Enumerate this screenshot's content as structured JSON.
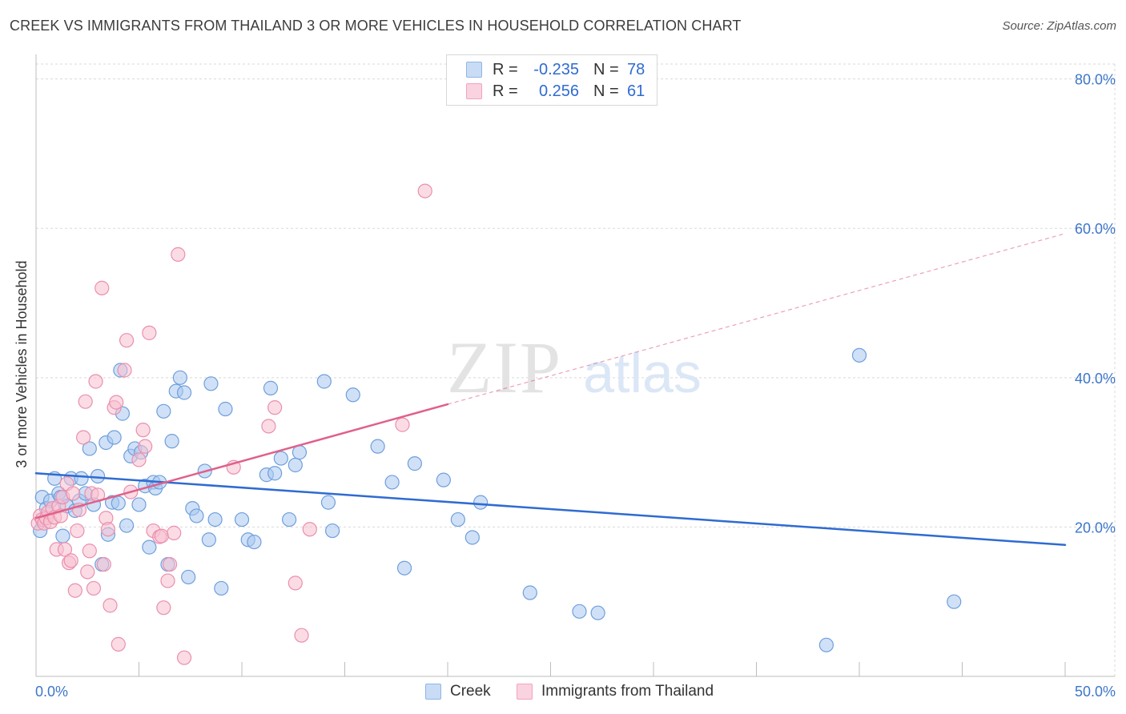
{
  "header": {
    "title": "CREEK VS IMMIGRANTS FROM THAILAND 3 OR MORE VEHICLES IN HOUSEHOLD CORRELATION CHART",
    "source": "Source: ZipAtlas.com"
  },
  "watermark": {
    "zip": "ZIP",
    "atlas": "atlas"
  },
  "legend": {
    "rows": [
      {
        "r_label": "R =",
        "r_value": "-0.235",
        "n_label": "N =",
        "n_value": "78",
        "color": "#8fb5e8"
      },
      {
        "r_label": "R =",
        "r_value": "0.256",
        "n_label": "N =",
        "n_value": "61",
        "color": "#f3a3bd"
      }
    ]
  },
  "colors": {
    "creek_fill": "#a9c8f0",
    "creek_stroke": "#6f9fdc",
    "creek_line": "#2f6bd1",
    "thai_fill": "#f7bfd0",
    "thai_stroke": "#ea8fad",
    "thai_line": "#e0608a",
    "axis_label": "#3d76c9",
    "grid": "#d9d9d9"
  },
  "chart_data": {
    "type": "scatter",
    "title": "CREEK VS IMMIGRANTS FROM THAILAND 3 OR MORE VEHICLES IN HOUSEHOLD CORRELATION CHART",
    "xlabel": "",
    "ylabel": "3 or more Vehicles in Household",
    "xlim": [
      0,
      50
    ],
    "ylim": [
      0,
      82
    ],
    "x_tick_labels": [
      "0.0%",
      "50.0%"
    ],
    "y_ticks": [
      20,
      40,
      60,
      80
    ],
    "y_tick_labels": [
      "20.0%",
      "40.0%",
      "60.0%",
      "80.0%"
    ],
    "grid": true,
    "legend_position": "bottom",
    "series": [
      {
        "name": "Creek",
        "r": -0.235,
        "n": 78,
        "trend": {
          "x_start": 0,
          "y_start": 27.2,
          "x_end": 50,
          "y_end": 17.6,
          "solid_until": 50
        },
        "points": [
          [
            0.2,
            19.5
          ],
          [
            0.3,
            24.0
          ],
          [
            0.5,
            22.5
          ],
          [
            0.7,
            23.5
          ],
          [
            0.9,
            26.5
          ],
          [
            1.1,
            24.5
          ],
          [
            1.2,
            24.0
          ],
          [
            1.3,
            18.8
          ],
          [
            1.5,
            22.8
          ],
          [
            1.7,
            26.5
          ],
          [
            1.9,
            22.2
          ],
          [
            2.1,
            23.5
          ],
          [
            2.2,
            26.5
          ],
          [
            2.4,
            24.5
          ],
          [
            2.6,
            30.5
          ],
          [
            2.8,
            23.0
          ],
          [
            3.0,
            26.8
          ],
          [
            3.2,
            15.0
          ],
          [
            3.4,
            31.3
          ],
          [
            3.5,
            19.0
          ],
          [
            3.7,
            23.3
          ],
          [
            3.8,
            32.0
          ],
          [
            4.0,
            23.2
          ],
          [
            4.1,
            41.0
          ],
          [
            4.2,
            35.2
          ],
          [
            4.4,
            20.2
          ],
          [
            4.6,
            29.5
          ],
          [
            4.8,
            30.5
          ],
          [
            5.0,
            23.0
          ],
          [
            5.1,
            30.0
          ],
          [
            5.3,
            25.5
          ],
          [
            5.5,
            17.3
          ],
          [
            5.7,
            26.0
          ],
          [
            5.8,
            25.2
          ],
          [
            6.0,
            26.0
          ],
          [
            6.2,
            35.5
          ],
          [
            6.4,
            15.0
          ],
          [
            6.6,
            31.5
          ],
          [
            6.8,
            38.2
          ],
          [
            7.0,
            40.0
          ],
          [
            7.2,
            38.0
          ],
          [
            7.4,
            13.3
          ],
          [
            7.6,
            22.5
          ],
          [
            7.8,
            21.5
          ],
          [
            8.2,
            27.5
          ],
          [
            8.4,
            18.3
          ],
          [
            8.5,
            39.2
          ],
          [
            8.7,
            21.0
          ],
          [
            9.0,
            11.8
          ],
          [
            9.2,
            35.8
          ],
          [
            10.0,
            21.0
          ],
          [
            10.3,
            18.3
          ],
          [
            10.6,
            18.0
          ],
          [
            11.2,
            27.0
          ],
          [
            11.4,
            38.6
          ],
          [
            11.6,
            27.2
          ],
          [
            11.9,
            29.2
          ],
          [
            12.3,
            21.0
          ],
          [
            12.6,
            28.3
          ],
          [
            12.8,
            30.0
          ],
          [
            14.0,
            39.5
          ],
          [
            14.2,
            23.3
          ],
          [
            14.4,
            19.5
          ],
          [
            15.4,
            37.7
          ],
          [
            16.6,
            30.8
          ],
          [
            17.3,
            26.0
          ],
          [
            17.9,
            14.5
          ],
          [
            18.4,
            28.5
          ],
          [
            19.8,
            26.3
          ],
          [
            20.5,
            21.0
          ],
          [
            21.2,
            18.6
          ],
          [
            21.6,
            23.3
          ],
          [
            24.0,
            11.2
          ],
          [
            26.4,
            8.7
          ],
          [
            27.3,
            8.5
          ],
          [
            38.4,
            4.2
          ],
          [
            40.0,
            43.0
          ],
          [
            44.6,
            10.0
          ]
        ]
      },
      {
        "name": "Immigrants from Thailand",
        "r": 0.256,
        "n": 61,
        "trend": {
          "x_start": 0,
          "y_start": 21.2,
          "x_end": 50,
          "y_end": 59.3,
          "solid_until": 20
        },
        "points": [
          [
            0.1,
            20.5
          ],
          [
            0.2,
            21.5
          ],
          [
            0.3,
            21.0
          ],
          [
            0.4,
            20.5
          ],
          [
            0.5,
            21.2
          ],
          [
            0.6,
            22.0
          ],
          [
            0.7,
            20.7
          ],
          [
            0.8,
            22.5
          ],
          [
            0.9,
            21.3
          ],
          [
            1.0,
            17.0
          ],
          [
            1.1,
            22.8
          ],
          [
            1.2,
            21.5
          ],
          [
            1.3,
            24.0
          ],
          [
            1.4,
            17.0
          ],
          [
            1.5,
            25.8
          ],
          [
            1.6,
            15.2
          ],
          [
            1.7,
            15.5
          ],
          [
            1.8,
            24.5
          ],
          [
            1.9,
            11.5
          ],
          [
            2.0,
            19.5
          ],
          [
            2.1,
            22.3
          ],
          [
            2.3,
            32.0
          ],
          [
            2.4,
            36.8
          ],
          [
            2.5,
            14.0
          ],
          [
            2.6,
            16.8
          ],
          [
            2.7,
            24.5
          ],
          [
            2.8,
            11.8
          ],
          [
            2.9,
            39.5
          ],
          [
            3.0,
            24.3
          ],
          [
            3.2,
            52.0
          ],
          [
            3.3,
            15.0
          ],
          [
            3.4,
            21.2
          ],
          [
            3.5,
            19.7
          ],
          [
            3.6,
            9.5
          ],
          [
            3.8,
            36.0
          ],
          [
            3.9,
            36.7
          ],
          [
            4.0,
            4.3
          ],
          [
            4.3,
            41.0
          ],
          [
            4.4,
            45.0
          ],
          [
            4.6,
            24.7
          ],
          [
            5.0,
            29.0
          ],
          [
            5.2,
            33.0
          ],
          [
            5.3,
            30.8
          ],
          [
            5.5,
            46.0
          ],
          [
            5.7,
            19.5
          ],
          [
            6.0,
            18.7
          ],
          [
            6.1,
            18.8
          ],
          [
            6.2,
            9.2
          ],
          [
            6.4,
            12.8
          ],
          [
            6.5,
            15.0
          ],
          [
            6.7,
            19.2
          ],
          [
            6.9,
            56.5
          ],
          [
            7.2,
            2.5
          ],
          [
            9.6,
            28.0
          ],
          [
            11.3,
            33.5
          ],
          [
            11.6,
            36.0
          ],
          [
            12.6,
            12.5
          ],
          [
            12.9,
            5.5
          ],
          [
            13.3,
            19.7
          ],
          [
            17.8,
            33.7
          ],
          [
            18.9,
            65.0
          ]
        ]
      }
    ]
  }
}
